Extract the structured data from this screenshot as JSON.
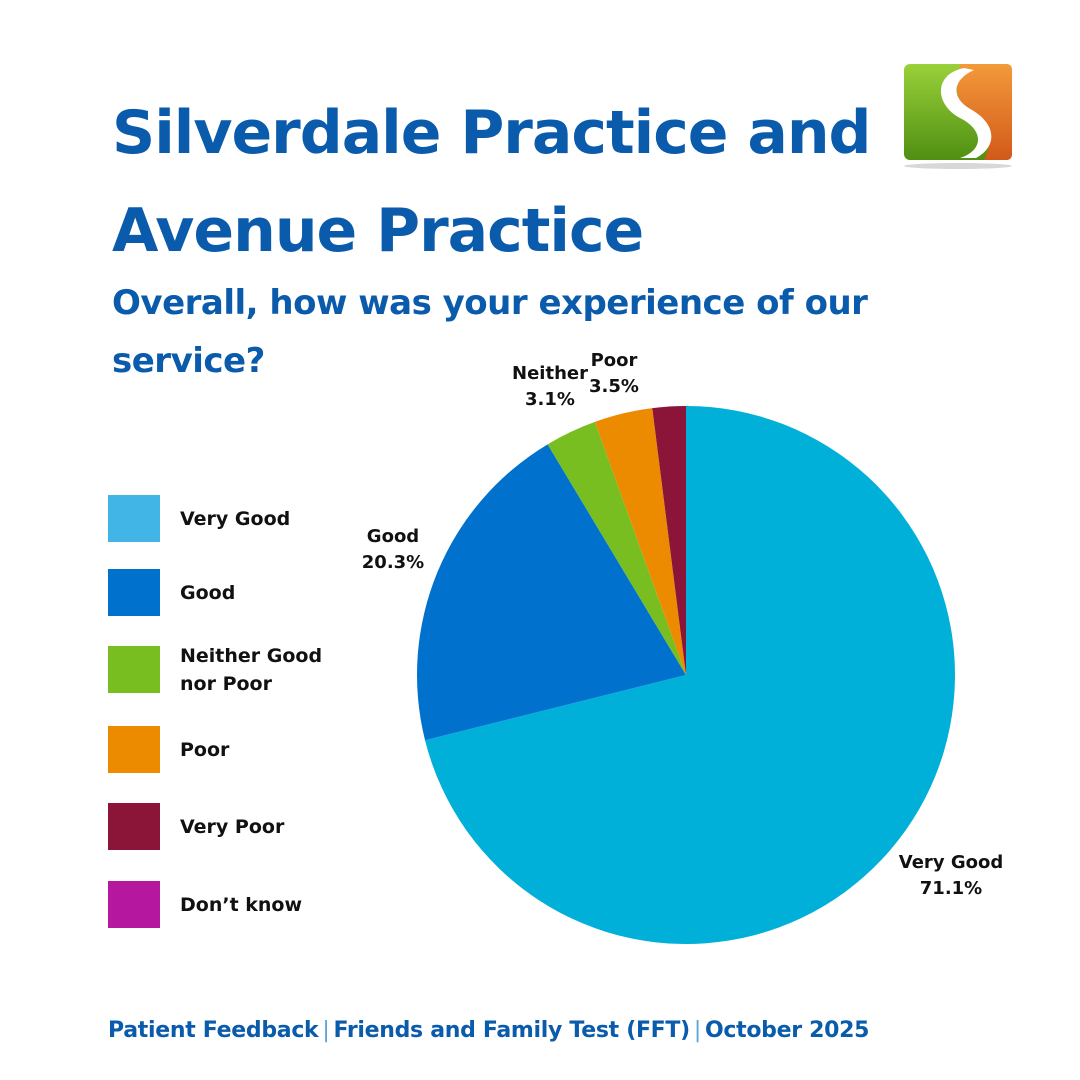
{
  "header": {
    "title": "Silverdale Practice and Avenue Practice",
    "subtitle": "Overall, how was your experience of our service?"
  },
  "logo": {
    "icon": "practice-logo-icon",
    "colors": {
      "green": "#6fb52b",
      "orange": "#e8761f",
      "white": "#ffffff"
    }
  },
  "legend": {
    "items": [
      {
        "label": "Very Good",
        "color": "#41b6e6"
      },
      {
        "label": "Good",
        "color": "#0072ce"
      },
      {
        "label": "Neither Good nor Poor",
        "color": "#78be20"
      },
      {
        "label": "Poor",
        "color": "#ed8b00"
      },
      {
        "label": "Very Poor",
        "color": "#8a1538"
      },
      {
        "label": "Don’t know",
        "color": "#b5179e"
      }
    ]
  },
  "chart_data": {
    "type": "pie",
    "title": "Overall, how was your experience of our service?",
    "legend_position": "left",
    "slices": [
      {
        "name": "Very Good",
        "value": 71.1,
        "label_name": "Very Good",
        "label_value": "71.1%",
        "color": "#00b0d8"
      },
      {
        "name": "Good",
        "value": 20.3,
        "label_name": "Good",
        "label_value": "20.3%",
        "color": "#0072ce"
      },
      {
        "name": "Neither Good nor Poor",
        "value": 3.1,
        "label_name": "Neither",
        "label_value": "3.1%",
        "color": "#78be20"
      },
      {
        "name": "Poor",
        "value": 3.5,
        "label_name": "Poor",
        "label_value": "3.5%",
        "color": "#ed8b00"
      },
      {
        "name": "Very Poor",
        "value": 2.0,
        "label_name": "",
        "label_value": "",
        "color": "#8a1538"
      }
    ]
  },
  "footer": {
    "part1": "Patient Feedback",
    "part2": "Friends and Family Test (FFT)",
    "part3": "October 2025",
    "separator": "|"
  }
}
